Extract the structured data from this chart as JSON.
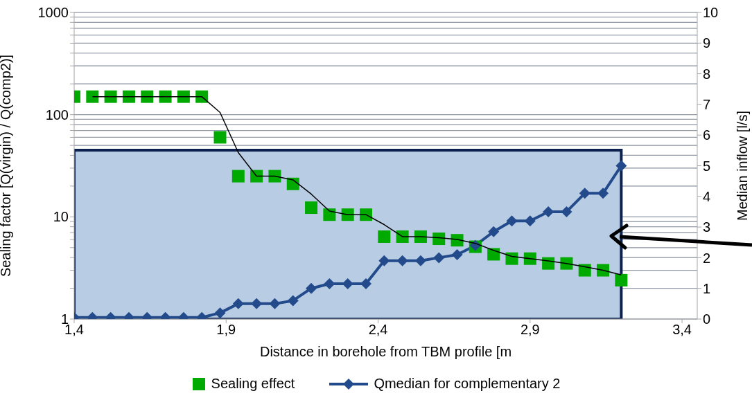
{
  "chart_data": {
    "type": "scatter",
    "xlabel": "Distance in borehole from TBM profile [m",
    "ylabel": "Sealing factor [Q(virgin) / Q(comp2)]",
    "y2label": "Median inflow [l/s]",
    "x": [
      1.4,
      1.46,
      1.52,
      1.58,
      1.64,
      1.7,
      1.76,
      1.82,
      1.88,
      1.94,
      2.0,
      2.06,
      2.12,
      2.18,
      2.24,
      2.3,
      2.36,
      2.42,
      2.48,
      2.54,
      2.6,
      2.66,
      2.72,
      2.78,
      2.84,
      2.9,
      2.96,
      3.02,
      3.08,
      3.14,
      3.2
    ],
    "xlim": [
      1.4,
      3.45
    ],
    "xticks": [
      {
        "value": 1.4,
        "label": "1,4"
      },
      {
        "value": 1.9,
        "label": "1,9"
      },
      {
        "value": 2.4,
        "label": "2,4"
      },
      {
        "value": 2.9,
        "label": "2,9"
      },
      {
        "value": 3.4,
        "label": "3,4"
      }
    ],
    "log": "y",
    "ylim": [
      1,
      1000
    ],
    "yticks": [
      1,
      {
        "value": 2,
        "label": null
      },
      {
        "value": 3,
        "label": null
      },
      {
        "value": 4,
        "label": null
      },
      {
        "value": 5,
        "label": null
      },
      {
        "value": 6,
        "label": null
      },
      {
        "value": 7,
        "label": null
      },
      {
        "value": 8,
        "label": null
      },
      {
        "value": 9,
        "label": null
      },
      10,
      {
        "value": 20,
        "label": null
      },
      {
        "value": 30,
        "label": null
      },
      {
        "value": 40,
        "label": null
      },
      {
        "value": 50,
        "label": null
      },
      {
        "value": 60,
        "label": null
      },
      {
        "value": 70,
        "label": null
      },
      {
        "value": 80,
        "label": null
      },
      {
        "value": 90,
        "label": null
      },
      100,
      {
        "value": 200,
        "label": null
      },
      {
        "value": 300,
        "label": null
      },
      {
        "value": 400,
        "label": null
      },
      {
        "value": 500,
        "label": null
      },
      {
        "value": 600,
        "label": null
      },
      {
        "value": 700,
        "label": null
      },
      {
        "value": 800,
        "label": null
      },
      {
        "value": 900,
        "label": null
      },
      1000
    ],
    "y2lim": [
      0,
      10
    ],
    "y2ticks": [
      0,
      1,
      2,
      3,
      4,
      5,
      6,
      7,
      8,
      9,
      10
    ],
    "grid": "y",
    "legend": "bottom",
    "bands": [
      {
        "axis": "y",
        "from": 1,
        "to": 45,
        "color": "#b8cce4"
      }
    ],
    "series": [
      {
        "name": "Sealing effect",
        "marker": "square",
        "color": "#00aa00",
        "values": [
          150,
          150,
          150,
          150,
          150,
          150,
          150,
          150,
          60,
          25,
          25,
          25,
          21,
          12.3,
          10.5,
          10.5,
          10.5,
          6.4,
          6.4,
          6.4,
          6.1,
          5.9,
          5.1,
          4.3,
          3.9,
          3.9,
          3.5,
          3.5,
          3.0,
          3.0,
          2.4
        ]
      },
      {
        "name": "Qmedian for complementary 2",
        "type": "line",
        "axis": "y2",
        "marker": "diamond",
        "color": "#234b8c",
        "values": [
          0.05,
          0.05,
          0.05,
          0.05,
          0.05,
          0.05,
          0.05,
          0.05,
          0.2,
          0.5,
          0.5,
          0.5,
          0.6,
          1.0,
          1.15,
          1.15,
          1.15,
          1.9,
          1.9,
          1.9,
          2.0,
          2.1,
          2.4,
          2.85,
          3.2,
          3.2,
          3.5,
          3.5,
          4.1,
          4.1,
          5.0
        ]
      },
      {
        "type": "line",
        "marker": "none",
        "color": "#000000",
        "values": [
          null,
          150,
          150,
          150,
          150,
          150,
          150,
          150,
          105,
          42.5,
          25,
          25,
          23,
          16.7,
          11.4,
          10.5,
          10.5,
          8.4,
          6.4,
          6.4,
          6.25,
          6.0,
          5.5,
          4.7,
          4.1,
          3.9,
          3.7,
          3.5,
          3.25,
          3.0,
          2.7
        ]
      }
    ]
  }
}
